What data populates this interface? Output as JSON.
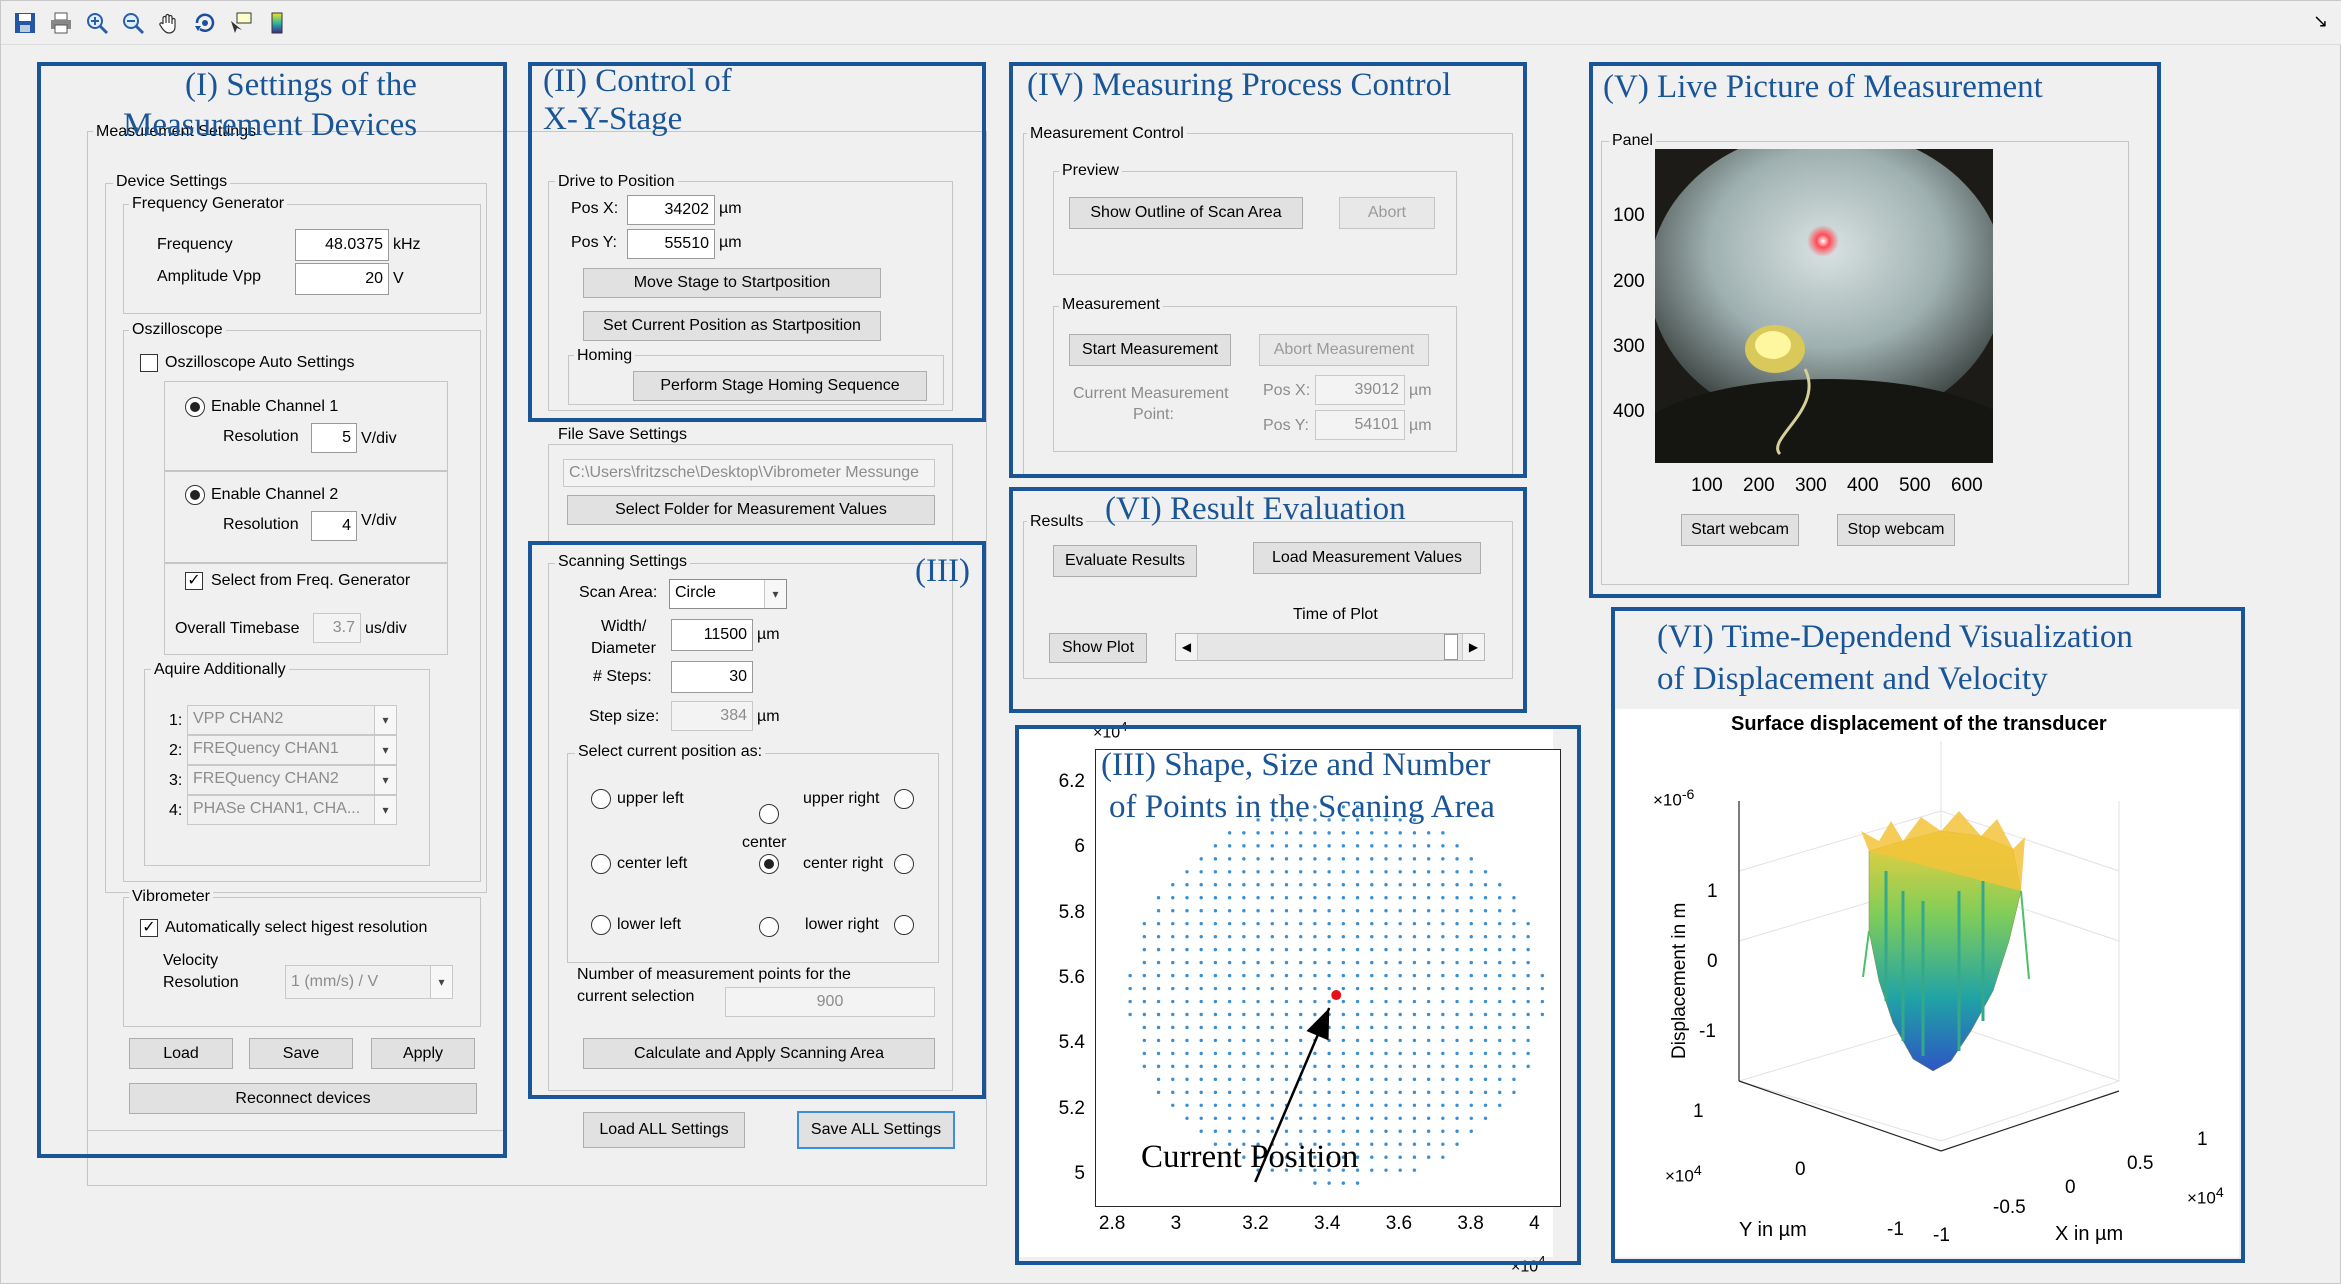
{
  "toolbar": {
    "icons": [
      "save-icon",
      "print-icon",
      "zoom-in-icon",
      "zoom-out-icon",
      "pan-hand-icon",
      "rotate-3d-icon",
      "data-cursor-icon",
      "colorbar-icon"
    ],
    "corner_glyph": "↘"
  },
  "annotations": {
    "a1": "(I) Settings of the",
    "a1b": "Measurement Devices",
    "a2": "(II) Control of",
    "a2b": "X-Y-Stage",
    "a3": "(III)",
    "a3b": "(III) Shape, Size and Number",
    "a3c": "of Points in the Scaning Area",
    "a4": "(IV) Measuring Process Control",
    "a5": "(V) Live Picture of Measurement",
    "a6": "(VI) Result Evaluation",
    "a7": "(VI) Time-Dependend Visualization",
    "a7b": "of Displacement and Velocity",
    "current_position": "Current Position"
  },
  "measurement_settings": {
    "title": "Measurement Settings",
    "device_settings": "Device Settings",
    "freq_gen": {
      "title": "Frequency Generator",
      "frequency_label": "Frequency",
      "frequency_value": "48.0375",
      "frequency_unit": "kHz",
      "amplitude_label": "Amplitude Vpp",
      "amplitude_value": "20",
      "amplitude_unit": "V"
    },
    "oscilloscope": {
      "title": "Oszilloscope",
      "auto_label": "Oszilloscope Auto Settings",
      "ch1_label": "Enable Channel 1",
      "ch1_res_label": "Resolution",
      "ch1_res_value": "5",
      "ch1_res_unit": "V/div",
      "ch2_label": "Enable Channel 2",
      "ch2_res_label": "Resolution",
      "ch2_res_value": "4",
      "ch2_res_unit": "V/div",
      "freq_gen_label": "Select from Freq. Generator",
      "timebase_label": "Overall Timebase",
      "timebase_value": "3.7",
      "timebase_unit": "us/div",
      "acquire_title": "Aquire Additionally",
      "acquire_items": [
        {
          "n": "1:",
          "v": "VPP CHAN2"
        },
        {
          "n": "2:",
          "v": "FREQuency CHAN1"
        },
        {
          "n": "3:",
          "v": "FREQuency CHAN2"
        },
        {
          "n": "4:",
          "v": "PHASe CHAN1, CHA..."
        }
      ]
    },
    "vibrometer": {
      "title": "Vibrometer",
      "auto_label": "Automatically select higest resolution",
      "velocity_label": "Velocity",
      "resolution_label": "Resolution",
      "resolution_value": "1        (mm/s) / V"
    },
    "buttons": {
      "load": "Load",
      "save": "Save",
      "apply": "Apply",
      "reconnect": "Reconnect devices"
    }
  },
  "drive": {
    "title": "Drive to Position",
    "posx_label": "Pos X:",
    "posx_value": "34202",
    "posx_unit": "µm",
    "posy_label": "Pos Y:",
    "posy_value": "55510",
    "posy_unit": "µm",
    "move_button": "Move Stage to Startposition",
    "set_button": "Set Current Position as Startposition",
    "homing_title": "Homing",
    "homing_button": "Perform Stage Homing Sequence"
  },
  "file_save": {
    "title": "File Save Settings",
    "path": "C:\\Users\\fritzsche\\Desktop\\Vibrometer Messunge",
    "select_button": "Select Folder for Measurement Values"
  },
  "scanning": {
    "title": "Scanning Settings",
    "scan_area_label": "Scan Area:",
    "scan_area_value": "Circle",
    "width_label": "Width/",
    "width_label2": "Diameter",
    "width_value": "11500",
    "width_unit": "µm",
    "steps_label": "# Steps:",
    "steps_value": "30",
    "stepsize_label": "Step size:",
    "stepsize_value": "384",
    "stepsize_unit": "µm",
    "select_title": "Select current position as:",
    "upper_left": "upper left",
    "upper_right": "upper right",
    "center": "center",
    "center_left": "center left",
    "center_right": "center right",
    "lower_left": "lower left",
    "lower_right": "lower right",
    "num_points_label": "Number of measurement points for the",
    "num_points_label2": "current selection",
    "num_points_value": "900",
    "calc_button": "Calculate and Apply Scanning Area"
  },
  "bottom_buttons": {
    "load_all": "Load ALL Settings",
    "save_all": "Save ALL Settings"
  },
  "measurement_control": {
    "title": "Measurement Control",
    "preview_title": "Preview",
    "show_outline": "Show Outline of Scan Area",
    "abort": "Abort",
    "measurement_title": "Measurement",
    "start": "Start Measurement",
    "abort_measurement": "Abort Measurement",
    "current_point_label": "Current Measurement",
    "current_point_label2": "Point:",
    "posx_label": "Pos X:",
    "posx_value": "39012",
    "posy_label": "Pos Y:",
    "posy_value": "54101",
    "unit": "µm"
  },
  "results": {
    "title": "Results",
    "evaluate": "Evaluate Results",
    "load_values": "Load Measurement Values",
    "time_label": "Time of Plot",
    "show_plot": "Show Plot"
  },
  "live": {
    "panel_title": "Panel",
    "y_ticks": [
      "100",
      "200",
      "300",
      "400"
    ],
    "x_ticks": [
      "100",
      "200",
      "300",
      "400",
      "500",
      "600"
    ],
    "start_webcam": "Start webcam",
    "stop_webcam": "Stop webcam"
  },
  "scan_plot": {
    "exp_label": "×10",
    "exp_power": "4",
    "y_ticks": [
      "6.2",
      "6",
      "5.8",
      "5.6",
      "5.4",
      "5.2",
      "5"
    ],
    "x_ticks": [
      "2.8",
      "3",
      "3.2",
      "3.4",
      "3.6",
      "3.8",
      "4"
    ],
    "point_color": "#3a8fd2",
    "current_color": "#e8101a"
  },
  "surface_plot": {
    "title": "Surface displacement of the transducer",
    "z_exp": "×10",
    "z_exp_power": "-6",
    "z_ticks": [
      "1",
      "0",
      "-1"
    ],
    "zlabel": "Displacement in m",
    "y_ticks": [
      "1",
      "0",
      "-1"
    ],
    "y_exp": "×10",
    "y_exp_power": "4",
    "ylabel": "Y in µm",
    "x_ticks": [
      "-1",
      "-0.5",
      "0",
      "0.5",
      "1"
    ],
    "x_exp": "×10",
    "x_exp_power": "4",
    "xlabel": "X in µm"
  },
  "chart_data": {
    "type": "scatter",
    "x_unit_exponent": 4,
    "y_unit_exponent": 4,
    "xlim": [
      2.75,
      4.05
    ],
    "ylim": [
      4.9,
      6.3
    ],
    "grid": false,
    "scan_area": {
      "shape": "circle",
      "center": [
        3.4202,
        5.551
      ],
      "diameter": 1.15,
      "steps": 30
    },
    "current_point": {
      "x": 3.4202,
      "y": 5.551
    }
  }
}
